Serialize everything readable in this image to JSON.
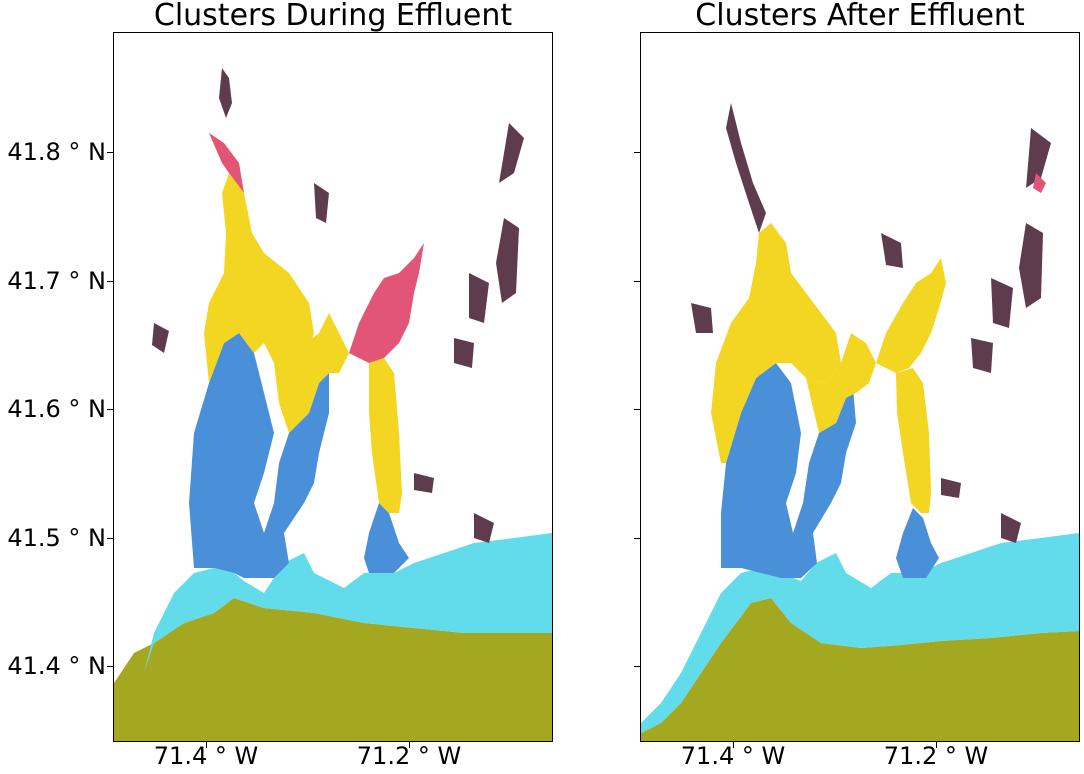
{
  "figure": {
    "panels": [
      {
        "id": "during",
        "title": "Clusters During Effluent"
      },
      {
        "id": "after",
        "title": "Clusters After Effluent"
      }
    ],
    "y_ticks": [
      "41.8$^\\circ$N",
      "41.7$^\\circ$N",
      "41.6$^\\circ$N",
      "41.5$^\\circ$N",
      "41.4$^\\circ$N"
    ],
    "y_tick_labels": [
      "41.8 ° N",
      "41.7 ° N",
      "41.6 ° N",
      "41.5 ° N",
      "41.4 ° N"
    ],
    "x_tick_labels": [
      "71.4 ° W",
      "71.2 ° W"
    ]
  },
  "map": {
    "extent": {
      "lon": [
        -71.49,
        -71.05
      ],
      "lat": [
        41.345,
        41.885
      ]
    },
    "y_tick_values": [
      41.8,
      41.7,
      41.6,
      41.5,
      41.4
    ],
    "x_tick_values": [
      -71.4,
      -71.2
    ],
    "cluster_colors": {
      "offshore": "#a3a820",
      "coastal": "#62dbeb",
      "bay_mid": "#4a90d9",
      "upper_bay": "#f2d621",
      "river": "#e25577",
      "land_edge": "#5e3c4e",
      "noise": "#2a2ae0"
    }
  }
}
